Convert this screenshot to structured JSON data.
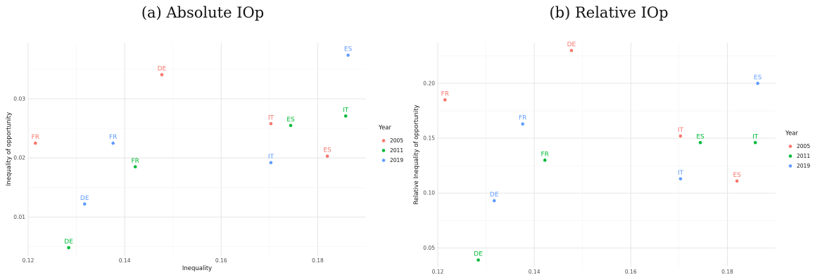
{
  "captions": {
    "left": "(a)  Absolute IOp",
    "right": "(b)  Relative IOp"
  },
  "colors": {
    "2005": "#F8766D",
    "2011": "#00BA38",
    "2019": "#619CFF"
  },
  "chart_data": [
    {
      "type": "scatter",
      "title": "",
      "xlabel": "Inequality",
      "ylabel": "Inequality of opportunity",
      "xlim": [
        0.12,
        0.19
      ],
      "ylim": [
        0.0035,
        0.0395
      ],
      "xticks": [
        0.12,
        0.14,
        0.16,
        0.18
      ],
      "xtick_labels": [
        "0.12",
        "0.14",
        "0.16",
        "0.18"
      ],
      "yticks": [
        0.01,
        0.02,
        0.03
      ],
      "ytick_labels": [
        "0.01",
        "0.02",
        "0.03"
      ],
      "grid": true,
      "legend": {
        "title": "Year",
        "position": "right",
        "entries": [
          "2005",
          "2011",
          "2019"
        ]
      },
      "series": [
        {
          "name": "2005",
          "points": [
            {
              "label": "FR",
              "x": 0.1215,
              "y": 0.0225
            },
            {
              "label": "DE",
              "x": 0.1477,
              "y": 0.0341
            },
            {
              "label": "IT",
              "x": 0.1703,
              "y": 0.0258
            },
            {
              "label": "ES",
              "x": 0.182,
              "y": 0.0203
            }
          ]
        },
        {
          "name": "2011",
          "points": [
            {
              "label": "DE",
              "x": 0.1284,
              "y": 0.0048
            },
            {
              "label": "FR",
              "x": 0.1422,
              "y": 0.0185
            },
            {
              "label": "ES",
              "x": 0.1744,
              "y": 0.0255
            },
            {
              "label": "IT",
              "x": 0.1858,
              "y": 0.0271
            }
          ]
        },
        {
          "name": "2019",
          "points": [
            {
              "label": "DE",
              "x": 0.1317,
              "y": 0.0122
            },
            {
              "label": "FR",
              "x": 0.1376,
              "y": 0.0225
            },
            {
              "label": "IT",
              "x": 0.1703,
              "y": 0.0192
            },
            {
              "label": "ES",
              "x": 0.1863,
              "y": 0.0374
            }
          ]
        }
      ]
    },
    {
      "type": "scatter",
      "title": "",
      "xlabel": "Inequality",
      "ylabel": "Relative Inequality of opportunity",
      "xlim": [
        0.12,
        0.19
      ],
      "ylim": [
        0.033,
        0.237
      ],
      "xticks": [
        0.12,
        0.14,
        0.16,
        0.18
      ],
      "xtick_labels": [
        "0.12",
        "0.14",
        "0.16",
        "0.18"
      ],
      "yticks": [
        0.05,
        0.1,
        0.15,
        0.2
      ],
      "ytick_labels": [
        "0.05",
        "0.10",
        "0.15",
        "0.20"
      ],
      "grid": true,
      "legend": {
        "title": "Year",
        "position": "right",
        "entries": [
          "2005",
          "2011",
          "2019"
        ]
      },
      "series": [
        {
          "name": "2005",
          "points": [
            {
              "label": "FR",
              "x": 0.1215,
              "y": 0.185
            },
            {
              "label": "DE",
              "x": 0.1477,
              "y": 0.23
            },
            {
              "label": "IT",
              "x": 0.1703,
              "y": 0.152
            },
            {
              "label": "ES",
              "x": 0.182,
              "y": 0.111
            }
          ]
        },
        {
          "name": "2011",
          "points": [
            {
              "label": "DE",
              "x": 0.1284,
              "y": 0.039
            },
            {
              "label": "FR",
              "x": 0.1422,
              "y": 0.13
            },
            {
              "label": "ES",
              "x": 0.1744,
              "y": 0.146
            },
            {
              "label": "IT",
              "x": 0.1858,
              "y": 0.146
            }
          ]
        },
        {
          "name": "2019",
          "points": [
            {
              "label": "DE",
              "x": 0.1317,
              "y": 0.093
            },
            {
              "label": "FR",
              "x": 0.1376,
              "y": 0.163
            },
            {
              "label": "IT",
              "x": 0.1703,
              "y": 0.113
            },
            {
              "label": "ES",
              "x": 0.1863,
              "y": 0.2
            }
          ]
        }
      ]
    }
  ]
}
